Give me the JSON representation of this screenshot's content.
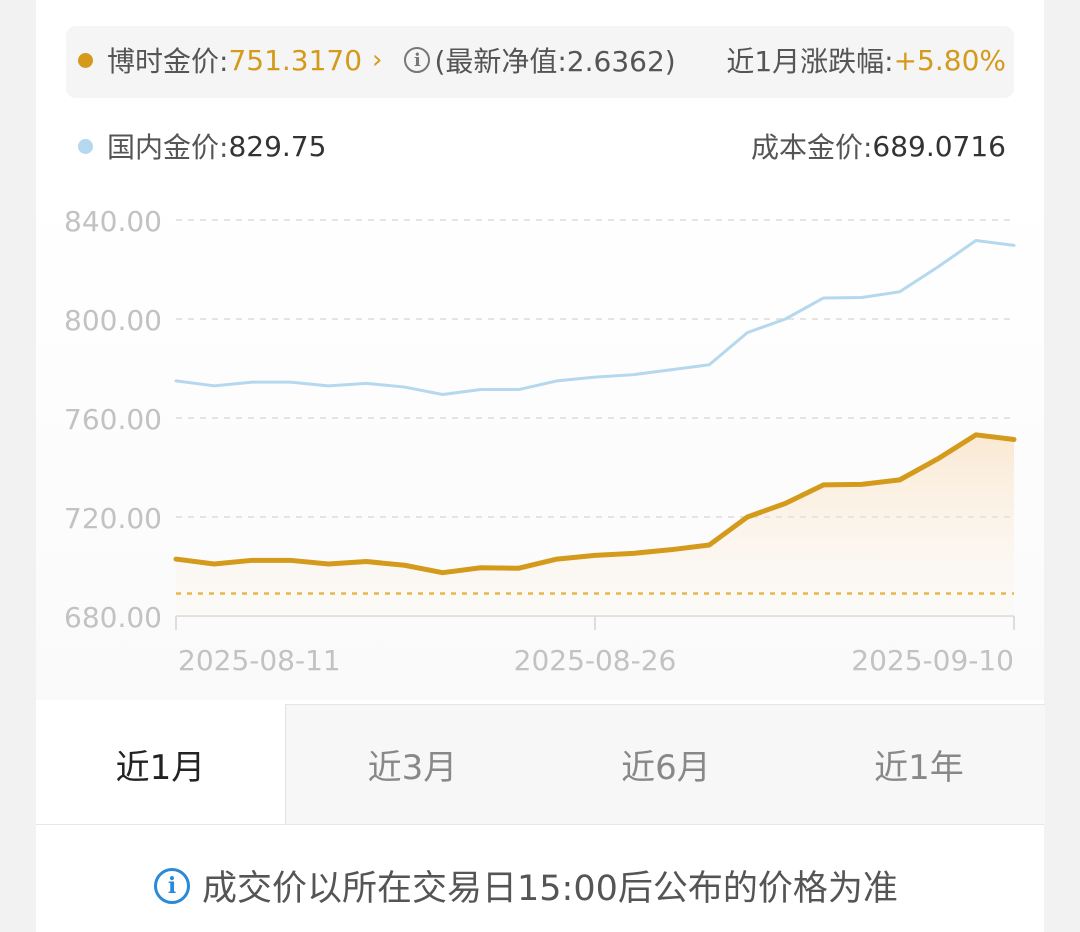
{
  "summary": {
    "fund_price_label": "博时金价:",
    "fund_price_value": "751.3170",
    "net_value_text": "(最新净值:2.6362)",
    "change_label": "近1月涨跌幅:",
    "change_value": "+5.80%",
    "domestic_label": "国内金价:",
    "domestic_value": "829.75",
    "cost_label": "成本金价:",
    "cost_value": "689.0716"
  },
  "colors": {
    "fund_line": "#d49a1c",
    "domestic_line": "#b5d8ef",
    "cost_line": "#e6b84a",
    "accent_text": "#d49a1c",
    "info_blue": "#2a8ad8"
  },
  "chart_data": {
    "type": "line",
    "title": "",
    "xlabel": "",
    "ylabel": "",
    "ylim": [
      680,
      840
    ],
    "y_ticks": [
      "680.00",
      "720.00",
      "760.00",
      "800.00",
      "840.00"
    ],
    "x_ticks": [
      "2025-08-11",
      "2025-08-26",
      "2025-09-10"
    ],
    "x": [
      "2025-08-11",
      "2025-08-12",
      "2025-08-13",
      "2025-08-14",
      "2025-08-15",
      "2025-08-18",
      "2025-08-19",
      "2025-08-20",
      "2025-08-21",
      "2025-08-22",
      "2025-08-25",
      "2025-08-26",
      "2025-08-27",
      "2025-08-28",
      "2025-08-29",
      "2025-09-01",
      "2025-09-02",
      "2025-09-03",
      "2025-09-04",
      "2025-09-05",
      "2025-09-08",
      "2025-09-09",
      "2025-09-10"
    ],
    "series": [
      {
        "values": [
          775.0,
          773.0,
          774.5,
          774.5,
          773.0,
          774.0,
          772.5,
          769.5,
          771.5,
          771.5,
          775.0,
          776.5,
          777.5,
          779.5,
          781.5,
          794.5,
          800.0,
          808.5,
          808.7,
          811.0,
          821.0,
          831.7,
          829.75
        ]
      },
      {
        "values": [
          703.0,
          701.0,
          702.5,
          702.5,
          701.0,
          702.0,
          700.5,
          697.5,
          699.5,
          699.3,
          703.0,
          704.5,
          705.3,
          706.8,
          708.7,
          720.0,
          725.5,
          733.0,
          733.2,
          735.0,
          743.5,
          753.2,
          751.317
        ]
      }
    ],
    "reference_line": {
      "value": 689.0716
    },
    "grid": true,
    "legend": "top"
  },
  "tabs": [
    {
      "label": "近1月",
      "active": true
    },
    {
      "label": "近3月",
      "active": false
    },
    {
      "label": "近6月",
      "active": false
    },
    {
      "label": "近1年",
      "active": false
    }
  ],
  "notice": {
    "icon": "info-icon",
    "text": "成交价以所在交易日15:00后公布的价格为准"
  }
}
